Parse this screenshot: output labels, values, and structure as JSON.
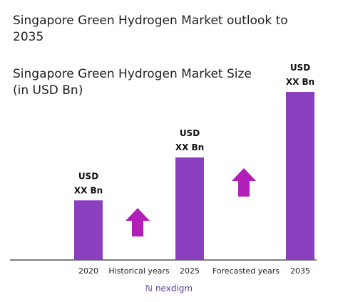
{
  "title": "Singapore Green Hydrogen Market outlook to 2035",
  "chart_data": {
    "type": "bar",
    "title": "Singapore Green Hydrogen Market Size (in USD Bn)",
    "categories": [
      "2020",
      "2025",
      "2035"
    ],
    "values": [
      1,
      1.72,
      2.82
    ],
    "value_labels": [
      "USD XX Bn",
      "USD XX Bn",
      "USD XX Bn"
    ],
    "period_labels": [
      "Historical years",
      "Forecasted years"
    ],
    "xlabel": "",
    "ylabel": "",
    "grid": false,
    "bar_color": "#8a3fbf",
    "arrow_color": "#b21fb8"
  },
  "brand": {
    "name": "nexdigm",
    "icon": "nexdigm-logo-icon"
  }
}
